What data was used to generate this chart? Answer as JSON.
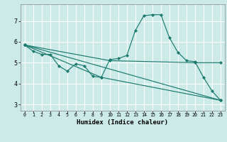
{
  "title": "",
  "xlabel": "Humidex (Indice chaleur)",
  "ylabel": "",
  "bg_color": "#cceae7",
  "grid_color": "#ffffff",
  "line_color": "#1a7a6e",
  "xlim": [
    -0.5,
    23.5
  ],
  "ylim": [
    2.7,
    7.8
  ],
  "yticks": [
    3,
    4,
    5,
    6,
    7
  ],
  "xticks": [
    0,
    1,
    2,
    3,
    4,
    5,
    6,
    7,
    8,
    9,
    10,
    11,
    12,
    13,
    14,
    15,
    16,
    17,
    18,
    19,
    20,
    21,
    22,
    23
  ],
  "lines": [
    {
      "x": [
        0,
        1,
        2,
        3,
        4,
        5,
        6,
        7,
        8,
        9,
        10,
        11,
        12,
        13,
        14,
        15,
        16,
        17,
        18,
        19,
        20,
        21,
        22,
        23
      ],
      "y": [
        5.85,
        5.55,
        5.4,
        5.4,
        4.85,
        4.6,
        4.95,
        4.85,
        4.35,
        4.3,
        5.15,
        5.2,
        5.35,
        6.55,
        7.25,
        7.3,
        7.3,
        6.2,
        5.5,
        5.1,
        5.05,
        4.3,
        3.65,
        3.2
      ]
    },
    {
      "x": [
        0,
        10,
        20,
        23
      ],
      "y": [
        5.85,
        5.1,
        5.0,
        5.0
      ]
    },
    {
      "x": [
        0,
        23
      ],
      "y": [
        5.85,
        3.2
      ]
    },
    {
      "x": [
        0,
        9,
        23
      ],
      "y": [
        5.85,
        4.3,
        3.2
      ]
    }
  ]
}
